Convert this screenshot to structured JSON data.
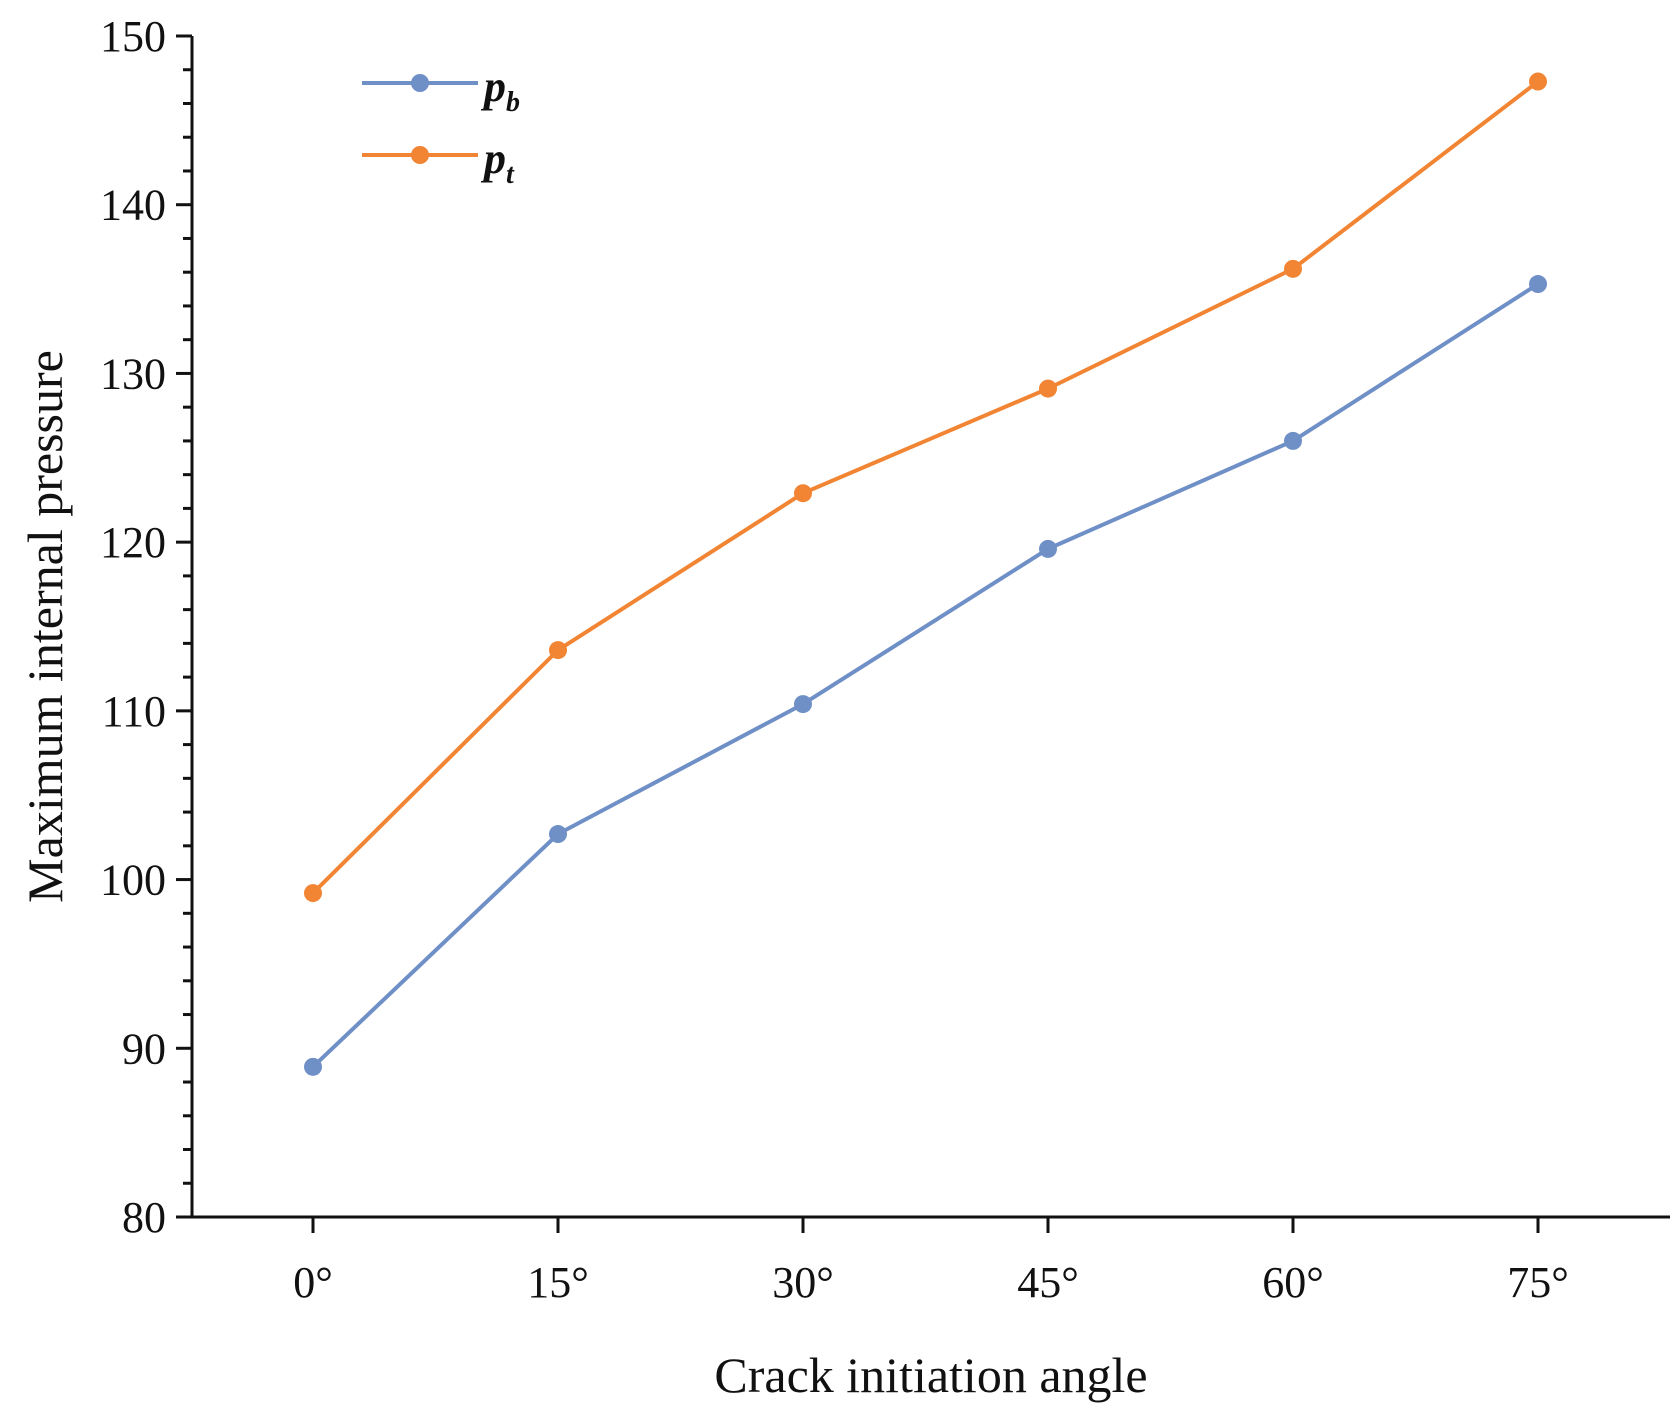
{
  "chart_data": {
    "type": "line",
    "title": "",
    "xlabel": "Crack initiation angle",
    "ylabel": "Maximum internal pressure",
    "categories": [
      "0°",
      "15°",
      "30°",
      "45°",
      "60°",
      "75°"
    ],
    "ylim": [
      80,
      150
    ],
    "yticks": [
      "80",
      "90",
      "100",
      "110",
      "120",
      "130",
      "140",
      "150"
    ],
    "y_minor_step": 2,
    "grid": false,
    "legend_position": "top-left",
    "series": [
      {
        "name": "p",
        "name_sub": "b",
        "color": "#6f8fc7",
        "values": [
          88.9,
          102.7,
          110.4,
          119.6,
          126.0,
          135.3
        ]
      },
      {
        "name": "p",
        "name_sub": "t",
        "color": "#f28533",
        "values": [
          99.2,
          113.6,
          122.9,
          129.1,
          136.2,
          147.3
        ]
      }
    ]
  }
}
